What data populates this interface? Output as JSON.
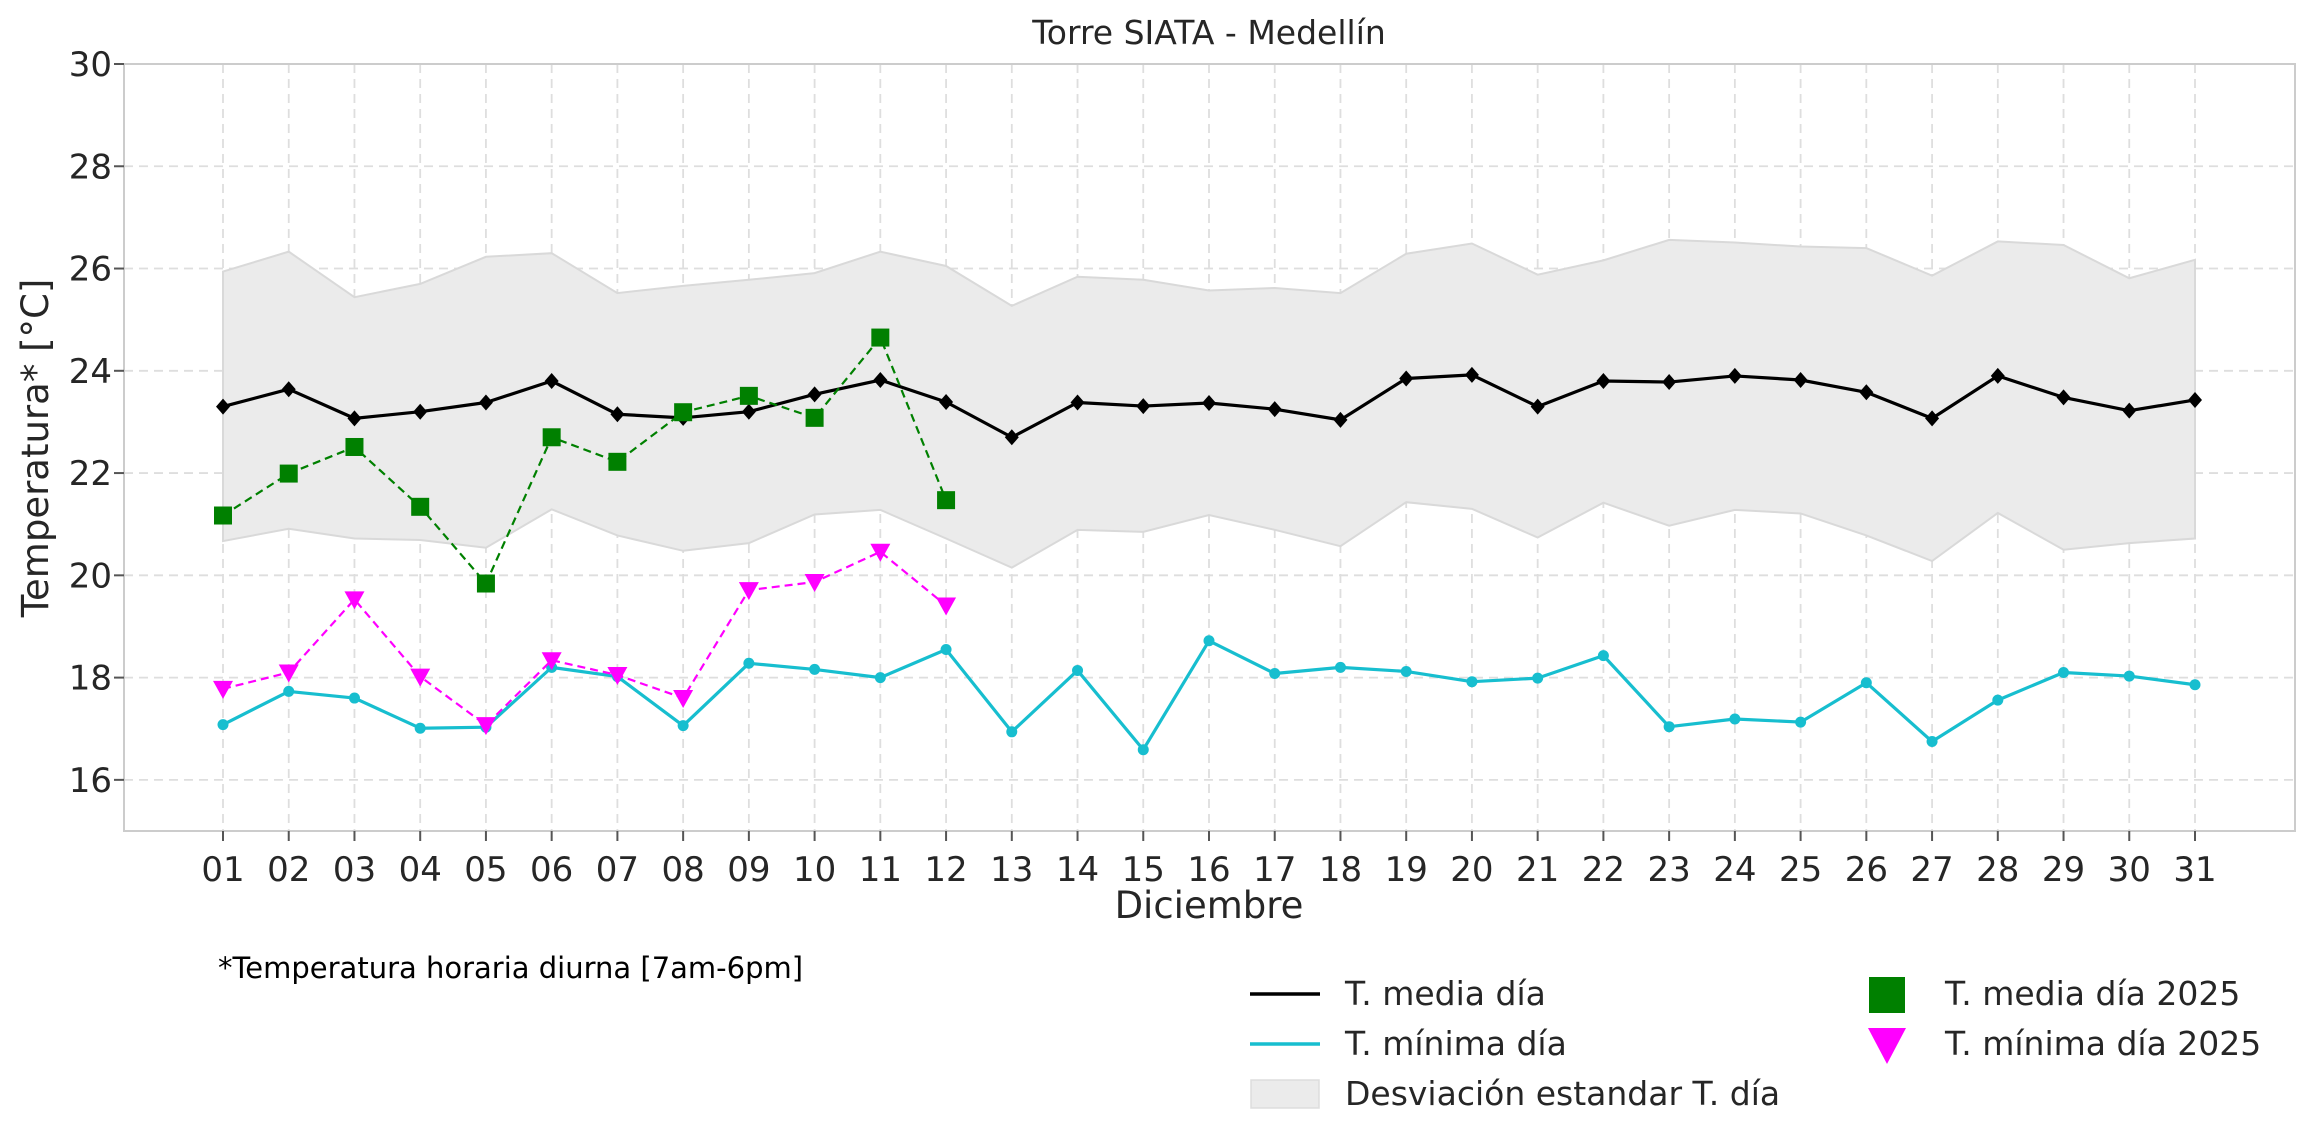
{
  "chart_data": {
    "type": "line",
    "title": "Torre SIATA - Medellín",
    "xlabel": "Diciembre",
    "ylabel": "Temperatura* [°C]",
    "footnote": "*Temperatura horaria diurna [7am-6pm]",
    "ylim": [
      15,
      30
    ],
    "yticks": [
      16,
      18,
      20,
      22,
      24,
      26,
      28,
      30
    ],
    "grid": true,
    "legend_position": "bottom-right",
    "categories": [
      "01",
      "02",
      "03",
      "04",
      "05",
      "06",
      "07",
      "08",
      "09",
      "10",
      "11",
      "12",
      "13",
      "14",
      "15",
      "16",
      "17",
      "18",
      "19",
      "20",
      "21",
      "22",
      "23",
      "24",
      "25",
      "26",
      "27",
      "28",
      "29",
      "30",
      "31"
    ],
    "series": [
      {
        "name": "T. media día",
        "style": "solid-line-diamond",
        "color": "#000000",
        "values": [
          23.3,
          23.64,
          23.07,
          23.2,
          23.38,
          23.8,
          23.15,
          23.08,
          23.2,
          23.54,
          23.82,
          23.39,
          22.7,
          23.38,
          23.31,
          23.37,
          23.25,
          23.04,
          23.85,
          23.92,
          23.3,
          23.8,
          23.78,
          23.9,
          23.82,
          23.58,
          23.07,
          23.9,
          23.48,
          23.22,
          23.43
        ]
      },
      {
        "name": "T. mínima día",
        "style": "solid-line-circle",
        "color": "#17becf",
        "values": [
          17.08,
          17.73,
          17.6,
          17.01,
          17.03,
          18.2,
          18.02,
          17.06,
          18.28,
          18.16,
          18.0,
          18.55,
          16.94,
          18.14,
          16.59,
          18.72,
          18.08,
          18.2,
          18.12,
          17.92,
          17.99,
          18.43,
          17.04,
          17.19,
          17.13,
          17.9,
          16.75,
          17.56,
          18.1,
          18.03,
          17.86
        ]
      },
      {
        "name": "Desviación estandar T. día",
        "style": "band",
        "color": "#e8e8e8",
        "upper": [
          25.94,
          26.33,
          25.44,
          25.7,
          26.23,
          26.3,
          25.52,
          25.66,
          25.78,
          25.91,
          26.33,
          26.05,
          25.27,
          25.84,
          25.78,
          25.57,
          25.62,
          25.52,
          26.29,
          26.49,
          25.88,
          26.16,
          26.56,
          26.51,
          26.43,
          26.4,
          25.86,
          26.53,
          26.46,
          25.81,
          26.17
        ],
        "lower": [
          20.67,
          20.91,
          20.72,
          20.69,
          20.54,
          21.29,
          20.78,
          20.48,
          20.63,
          21.19,
          21.28,
          20.72,
          20.15,
          20.89,
          20.85,
          21.18,
          20.89,
          20.57,
          21.43,
          21.3,
          20.74,
          21.42,
          20.97,
          21.28,
          21.21,
          20.78,
          20.28,
          21.22,
          20.5,
          20.63,
          20.72
        ]
      },
      {
        "name": "T. media día 2025",
        "style": "dashed-line-square",
        "color": "#008000",
        "values": [
          21.17,
          21.99,
          22.51,
          21.34,
          19.84,
          22.7,
          22.22,
          23.19,
          23.51,
          23.08,
          24.65,
          21.47
        ]
      },
      {
        "name": "T. mínima día 2025",
        "style": "dashed-line-triangle-down",
        "color": "#ff00ff",
        "values": [
          17.78,
          18.1,
          19.53,
          18.02,
          17.07,
          18.34,
          18.05,
          17.6,
          19.71,
          19.87,
          20.46,
          19.41
        ]
      }
    ],
    "legend": {
      "left_column": [
        "T. media día",
        "T. mínima día",
        "Desviación estandar T. día"
      ],
      "right_column": [
        "T. media día 2025",
        "T. mínima día 2025"
      ]
    }
  }
}
